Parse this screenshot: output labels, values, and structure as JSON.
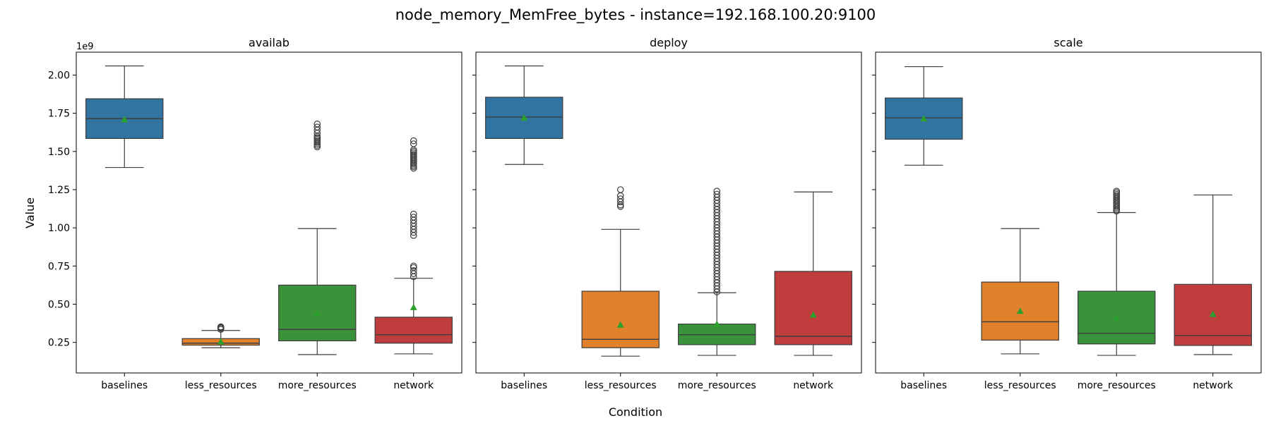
{
  "figure": {
    "title": "node_memory_MemFree_bytes - instance=192.168.100.20:9100",
    "xlabel": "Condition",
    "ylabel": "Value",
    "y_offset_text": "1e9"
  },
  "colors": {
    "baselines": "#3274a1",
    "less_resources": "#e1812c",
    "more_resources": "#3a923a",
    "network": "#c03d3e",
    "mean_marker": "#2ca02c",
    "median_line": "#3d3d3d",
    "whisker": "#3d3d3d"
  },
  "chart_data": {
    "type": "box",
    "shared_y": true,
    "ylim": [
      0.05,
      2.15
    ],
    "y_scale_note": "1e9",
    "y_ticks": [
      0.25,
      0.5,
      0.75,
      1.0,
      1.25,
      1.5,
      1.75,
      2.0
    ],
    "y_tick_labels": [
      "0.25",
      "0.50",
      "0.75",
      "1.00",
      "1.25",
      "1.50",
      "1.75",
      "2.00"
    ],
    "categories": [
      "baselines",
      "less_resources",
      "more_resources",
      "network"
    ],
    "panels": [
      {
        "title": "availab",
        "boxes": [
          {
            "category": "baselines",
            "whislo": 1.395,
            "q1": 1.585,
            "med": 1.715,
            "q3": 1.845,
            "whishi": 2.06,
            "mean": 1.71,
            "fliers": []
          },
          {
            "category": "less_resources",
            "whislo": 0.215,
            "q1": 0.232,
            "med": 0.245,
            "q3": 0.275,
            "whishi": 0.328,
            "mean": 0.255,
            "fliers": [
              0.335,
              0.342,
              0.348,
              0.352
            ]
          },
          {
            "category": "more_resources",
            "whislo": 0.17,
            "q1": 0.26,
            "med": 0.335,
            "q3": 0.625,
            "whishi": 0.995,
            "mean": 0.44,
            "fliers": [
              1.53,
              1.54,
              1.55,
              1.56,
              1.57,
              1.58,
              1.59,
              1.6,
              1.62,
              1.64,
              1.66,
              1.68
            ]
          },
          {
            "category": "network",
            "whislo": 0.175,
            "q1": 0.245,
            "med": 0.3,
            "q3": 0.415,
            "whishi": 0.67,
            "mean": 0.48,
            "fliers": [
              0.68,
              0.7,
              0.72,
              0.74,
              0.75,
              0.95,
              0.97,
              0.99,
              1.01,
              1.03,
              1.05,
              1.07,
              1.09,
              1.39,
              1.4,
              1.41,
              1.42,
              1.43,
              1.44,
              1.45,
              1.46,
              1.47,
              1.48,
              1.49,
              1.5,
              1.51,
              1.55,
              1.57
            ]
          }
        ]
      },
      {
        "title": "deploy",
        "boxes": [
          {
            "category": "baselines",
            "whislo": 1.415,
            "q1": 1.585,
            "med": 1.725,
            "q3": 1.855,
            "whishi": 2.06,
            "mean": 1.72,
            "fliers": []
          },
          {
            "category": "less_resources",
            "whislo": 0.16,
            "q1": 0.215,
            "med": 0.27,
            "q3": 0.585,
            "whishi": 0.99,
            "mean": 0.365,
            "fliers": [
              1.14,
              1.15,
              1.17,
              1.19,
              1.21,
              1.25
            ]
          },
          {
            "category": "more_resources",
            "whislo": 0.165,
            "q1": 0.235,
            "med": 0.3,
            "q3": 0.37,
            "whishi": 0.575,
            "mean": 0.37,
            "fliers": [
              0.58,
              0.6,
              0.62,
              0.64,
              0.66,
              0.68,
              0.7,
              0.72,
              0.74,
              0.76,
              0.78,
              0.8,
              0.82,
              0.84,
              0.86,
              0.88,
              0.9,
              0.92,
              0.94,
              0.96,
              0.98,
              1.0,
              1.02,
              1.04,
              1.06,
              1.08,
              1.1,
              1.12,
              1.14,
              1.16,
              1.18,
              1.2,
              1.22,
              1.24
            ]
          },
          {
            "category": "network",
            "whislo": 0.165,
            "q1": 0.235,
            "med": 0.29,
            "q3": 0.715,
            "whishi": 1.235,
            "mean": 0.43,
            "fliers": []
          }
        ]
      },
      {
        "title": "scale",
        "boxes": [
          {
            "category": "baselines",
            "whislo": 1.41,
            "q1": 1.58,
            "med": 1.72,
            "q3": 1.85,
            "whishi": 2.055,
            "mean": 1.715,
            "fliers": []
          },
          {
            "category": "less_resources",
            "whislo": 0.175,
            "q1": 0.265,
            "med": 0.385,
            "q3": 0.645,
            "whishi": 0.995,
            "mean": 0.455,
            "fliers": []
          },
          {
            "category": "more_resources",
            "whislo": 0.165,
            "q1": 0.24,
            "med": 0.31,
            "q3": 0.585,
            "whishi": 1.1,
            "mean": 0.41,
            "fliers": [
              1.11,
              1.12,
              1.13,
              1.14,
              1.15,
              1.16,
              1.17,
              1.18,
              1.19,
              1.2,
              1.21,
              1.22,
              1.23,
              1.24
            ]
          },
          {
            "category": "network",
            "whislo": 0.17,
            "q1": 0.23,
            "med": 0.295,
            "q3": 0.63,
            "whishi": 1.215,
            "mean": 0.435,
            "fliers": []
          }
        ]
      }
    ]
  }
}
